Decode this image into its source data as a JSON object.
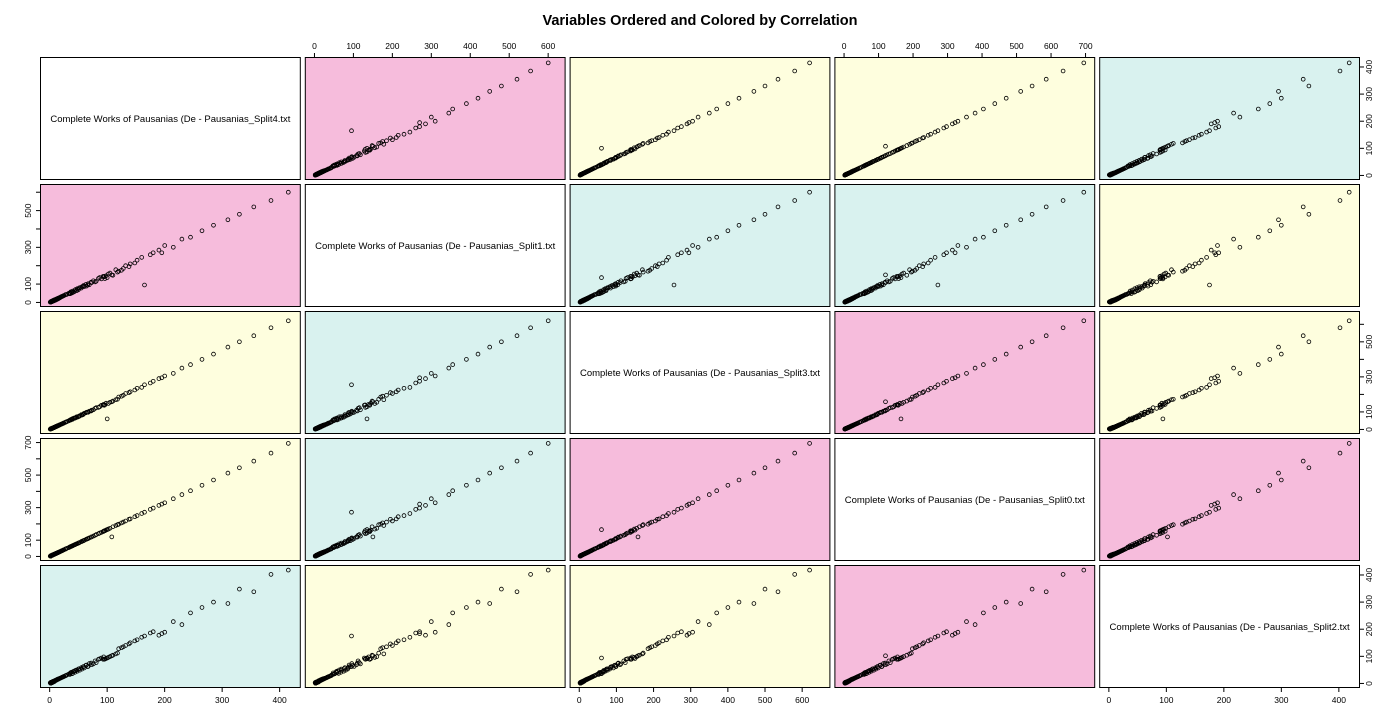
{
  "title": "Variables Ordered and Colored by Correlation",
  "chart_data": {
    "type": "scatter",
    "subtype": "pairs-matrix",
    "title": "Variables Ordered and Colored by Correlation",
    "grid": {
      "rows": 5,
      "cols": 5
    },
    "palette": {
      "pink": "#F6BCDC",
      "yellow": "#FEFEDE",
      "cyan": "#D9F2EF",
      "diag": "#FFFFFF",
      "point": "#000000",
      "border": "#000000"
    },
    "color_matrix": [
      [
        "diag",
        "pink",
        "yellow",
        "yellow",
        "cyan"
      ],
      [
        "pink",
        "diag",
        "cyan",
        "cyan",
        "yellow"
      ],
      [
        "yellow",
        "cyan",
        "diag",
        "pink",
        "yellow"
      ],
      [
        "yellow",
        "cyan",
        "pink",
        "diag",
        "pink"
      ],
      [
        "cyan",
        "yellow",
        "yellow",
        "pink",
        "diag"
      ]
    ],
    "variables": [
      {
        "key": "Split4",
        "label": "Complete Works of Pausanias (De - Pausanias_Split4.txt",
        "max": 420,
        "ticks": [
          0,
          100,
          200,
          300,
          400
        ]
      },
      {
        "key": "Split1",
        "label": "Complete Works of Pausanias (De - Pausanias_Split1.txt",
        "max": 620,
        "ticks": [
          0,
          100,
          200,
          300,
          400,
          500,
          600
        ]
      },
      {
        "key": "Split3",
        "label": "Complete Works of Pausanias (De - Pausanias_Split3.txt",
        "max": 650,
        "ticks": [
          0,
          100,
          200,
          300,
          400,
          500,
          600
        ]
      },
      {
        "key": "Split0",
        "label": "Complete Works of Pausanias (De - Pausanias_Split0.txt",
        "max": 700,
        "ticks": [
          0,
          100,
          200,
          300,
          400,
          500,
          600,
          700
        ]
      },
      {
        "key": "Split2",
        "label": "Complete Works of Pausanias (De - Pausanias_Split2.txt",
        "max": 420,
        "ticks": [
          0,
          100,
          200,
          300,
          400
        ]
      }
    ],
    "axes": [
      {
        "side": "top",
        "index": 1,
        "labeled": [
          0,
          100,
          200,
          300,
          400,
          500,
          600
        ]
      },
      {
        "side": "top",
        "index": 3,
        "labeled": [
          0,
          100,
          200,
          300,
          400,
          500,
          600,
          700
        ]
      },
      {
        "side": "bottom",
        "index": 0,
        "labeled": [
          0,
          100,
          200,
          300,
          400
        ]
      },
      {
        "side": "bottom",
        "index": 2,
        "labeled": [
          0,
          100,
          200,
          300,
          400,
          500,
          600
        ]
      },
      {
        "side": "bottom",
        "index": 4,
        "labeled": [
          0,
          100,
          200,
          300,
          400
        ]
      },
      {
        "side": "left",
        "index": 1,
        "labeled": [
          0,
          100,
          300,
          500
        ]
      },
      {
        "side": "left",
        "index": 3,
        "labeled": [
          0,
          100,
          300,
          500,
          700
        ]
      },
      {
        "side": "right",
        "index": 0,
        "labeled": [
          0,
          100,
          200,
          300,
          400
        ]
      },
      {
        "side": "right",
        "index": 2,
        "labeled": [
          0,
          100,
          300,
          500
        ]
      },
      {
        "side": "right",
        "index": 4,
        "labeled": [
          0,
          100,
          200,
          300,
          400
        ]
      }
    ],
    "points": {
      "Split4": [
        1,
        2,
        3,
        2,
        5,
        4,
        7,
        3,
        6,
        9,
        2,
        8,
        11,
        5,
        4,
        13,
        3,
        10,
        6,
        15,
        2,
        7,
        12,
        4,
        18,
        9,
        3,
        14,
        5,
        21,
        8,
        2,
        16,
        6,
        11,
        24,
        4,
        9,
        3,
        19,
        7,
        13,
        2,
        27,
        5,
        10,
        16,
        4,
        8,
        30,
        3,
        12,
        6,
        22,
        9,
        5,
        17,
        2,
        14,
        7,
        33,
        11,
        4,
        25,
        8,
        3,
        20,
        6,
        13,
        5,
        28,
        10,
        2,
        15,
        7,
        35,
        9,
        4,
        23,
        12,
        38,
        52,
        43,
        67,
        36,
        58,
        81,
        45,
        72,
        39,
        63,
        90,
        48,
        55,
        76,
        41,
        85,
        60,
        37,
        69,
        93,
        50,
        44,
        79,
        56,
        64,
        40,
        87,
        47,
        73,
        59,
        35,
        94,
        66,
        51,
        98,
        120,
        105,
        140,
        110,
        160,
        96,
        132,
        118,
        175,
        102,
        148,
        125,
        95,
        165,
        108,
        138,
        115,
        180,
        100,
        152,
        128,
        190,
        215,
        200,
        245,
        230,
        265,
        195,
        285,
        310,
        330,
        355,
        385,
        415
      ],
      "Split1": [
        2,
        3,
        5,
        2,
        8,
        6,
        11,
        4,
        10,
        13,
        4,
        12,
        17,
        7,
        5,
        20,
        5,
        14,
        8,
        23,
        3,
        9,
        18,
        7,
        26,
        12,
        6,
        19,
        9,
        32,
        10,
        3,
        25,
        7,
        15,
        36,
        5,
        14,
        4,
        29,
        12,
        17,
        3,
        41,
        6,
        16,
        22,
        7,
        13,
        44,
        4,
        16,
        10,
        33,
        11,
        8,
        26,
        2,
        22,
        10,
        49,
        14,
        6,
        38,
        11,
        5,
        31,
        9,
        20,
        6,
        43,
        13,
        4,
        21,
        11,
        52,
        15,
        5,
        35,
        19,
        57,
        80,
        59,
        102,
        48,
        88,
        115,
        70,
        110,
        52,
        98,
        128,
        75,
        78,
        118,
        56,
        131,
        86,
        58,
        96,
        142,
        69,
        68,
        112,
        85,
        89,
        62,
        135,
        64,
        108,
        92,
        47,
        139,
        95,
        77,
        145,
        170,
        160,
        210,
        148,
        245,
        130,
        200,
        165,
        260,
        155,
        215,
        175,
        142,
        95,
        150,
        195,
        178,
        270,
        135,
        230,
        185,
        285,
        300,
        310,
        355,
        345,
        390,
        270,
        420,
        450,
        480,
        520,
        555,
        600
      ],
      "Split3": [
        2,
        3,
        4,
        3,
        7,
        6,
        10,
        5,
        9,
        14,
        3,
        11,
        16,
        8,
        6,
        19,
        4,
        15,
        9,
        22,
        3,
        10,
        17,
        6,
        27,
        13,
        5,
        21,
        7,
        31,
        12,
        3,
        24,
        9,
        16,
        36,
        6,
        13,
        4,
        28,
        10,
        19,
        3,
        40,
        7,
        15,
        24,
        6,
        12,
        45,
        5,
        18,
        9,
        33,
        13,
        7,
        25,
        3,
        21,
        10,
        49,
        16,
        6,
        37,
        12,
        4,
        30,
        9,
        19,
        7,
        42,
        15,
        3,
        22,
        10,
        52,
        13,
        6,
        34,
        18,
        58,
        76,
        66,
        98,
        55,
        85,
        124,
        66,
        105,
        60,
        95,
        138,
        70,
        84,
        112,
        63,
        126,
        92,
        54,
        104,
        140,
        73,
        65,
        120,
        82,
        98,
        58,
        130,
        72,
        110,
        88,
        52,
        143,
        99,
        76,
        150,
        185,
        155,
        215,
        162,
        240,
        140,
        205,
        172,
        265,
        148,
        225,
        190,
        138,
        255,
        158,
        210,
        170,
        275,
        60,
        235,
        195,
        290,
        320,
        305,
        370,
        350,
        400,
        295,
        430,
        470,
        500,
        535,
        580,
        620
      ],
      "Split0": [
        2,
        3,
        5,
        3,
        8,
        7,
        12,
        5,
        10,
        15,
        3,
        13,
        18,
        8,
        7,
        21,
        5,
        17,
        10,
        25,
        3,
        12,
        20,
        7,
        30,
        15,
        5,
        23,
        8,
        35,
        13,
        3,
        26,
        10,
        18,
        40,
        7,
        15,
        5,
        31,
        12,
        21,
        3,
        45,
        8,
        17,
        26,
        7,
        13,
        50,
        5,
        20,
        10,
        36,
        15,
        8,
        28,
        3,
        23,
        12,
        54,
        18,
        7,
        41,
        13,
        5,
        33,
        10,
        21,
        8,
        46,
        17,
        3,
        25,
        12,
        58,
        15,
        7,
        38,
        20,
        63,
        86,
        71,
        110,
        59,
        96,
        134,
        74,
        119,
        64,
        104,
        148,
        79,
        91,
        125,
        68,
        140,
        99,
        61,
        114,
        153,
        82,
        73,
        130,
        92,
        106,
        66,
        144,
        78,
        120,
        97,
        58,
        155,
        109,
        84,
        162,
        198,
        173,
        231,
        182,
        264,
        158,
        218,
        195,
        289,
        168,
        244,
        206,
        157,
        272,
        120,
        228,
        190,
        297,
        165,
        251,
        211,
        314,
        355,
        330,
        404,
        380,
        437,
        322,
        470,
        512,
        545,
        586,
        635,
        695
      ],
      "Split2": [
        2,
        1,
        4,
        3,
        6,
        3,
        8,
        4,
        5,
        10,
        3,
        7,
        12,
        6,
        3,
        14,
        4,
        11,
        7,
        16,
        1,
        8,
        13,
        5,
        19,
        8,
        4,
        15,
        6,
        22,
        7,
        3,
        17,
        5,
        12,
        25,
        3,
        10,
        4,
        20,
        8,
        14,
        1,
        28,
        6,
        11,
        17,
        5,
        9,
        31,
        2,
        13,
        7,
        23,
        10,
        4,
        18,
        3,
        15,
        8,
        34,
        12,
        5,
        26,
        9,
        2,
        21,
        7,
        14,
        4,
        29,
        11,
        3,
        16,
        8,
        36,
        10,
        5,
        24,
        13,
        41,
        49,
        46,
        63,
        39,
        61,
        77,
        48,
        75,
        36,
        67,
        94,
        45,
        58,
        72,
        44,
        89,
        57,
        40,
        73,
        89,
        53,
        41,
        83,
        53,
        68,
        37,
        91,
        50,
        69,
        62,
        33,
        98,
        62,
        54,
        92,
        128,
        99,
        150,
        104,
        170,
        90,
        140,
        112,
        186,
        96,
        157,
        132,
        89,
        175,
        102,
        146,
        109,
        191,
        94,
        161,
        135,
        178,
        228,
        189,
        260,
        217,
        280,
        184,
        300,
        295,
        348,
        338,
        402,
        418
      ]
    },
    "layout_hints": {
      "axis_padding_fraction": 0.04,
      "grid_lines": false,
      "legend": "none",
      "point_marker": "open-circle"
    }
  }
}
